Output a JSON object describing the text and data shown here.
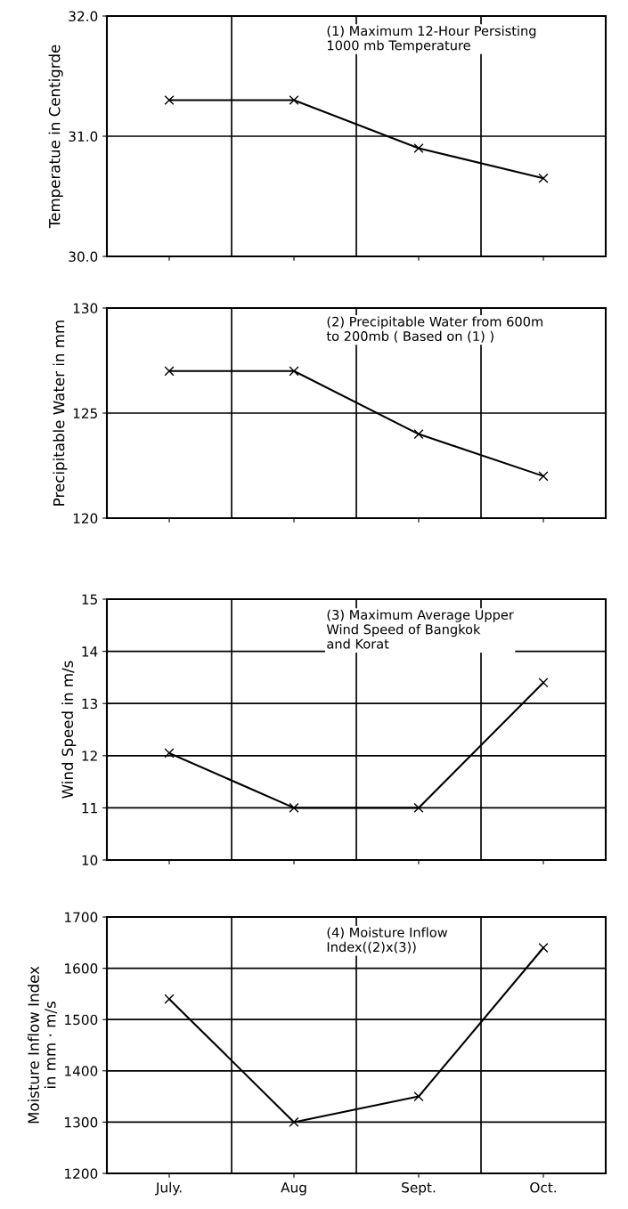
{
  "chart_data": [
    {
      "type": "line",
      "categories": [
        null,
        null,
        null,
        null
      ],
      "values": [
        31.3,
        31.3,
        30.9,
        30.65
      ],
      "color": "#000000",
      "marker": "cross",
      "ylabel": "Temperatue in Centigrde",
      "ylim": [
        30.0,
        32.0
      ],
      "yticks": [
        {
          "value": 30.0,
          "label": "30.0"
        },
        {
          "value": 31.0,
          "label": "31.0"
        },
        {
          "value": 32.0,
          "label": "32.0"
        }
      ],
      "grid": true,
      "tick_labels": "y",
      "annotations": [
        "(1) Maximum 12-Hour Persisting\n1000 mb Temperature"
      ]
    },
    {
      "type": "line",
      "categories": [
        null,
        null,
        null,
        null
      ],
      "values": [
        127,
        127,
        124,
        122
      ],
      "color": "#000000",
      "marker": "cross",
      "ylabel": "Precipitable Water in mm",
      "ylim": [
        120,
        130
      ],
      "yticks": [
        120,
        125,
        130
      ],
      "grid": true,
      "tick_labels": "y",
      "annotations": [
        "(2) Precipitable Water from 600m\nto 200mb ( Based on (1) )"
      ]
    },
    {
      "type": "line",
      "categories": [
        null,
        null,
        null,
        null
      ],
      "values": [
        12.05,
        11.0,
        11.0,
        13.4
      ],
      "color": "#000000",
      "marker": "cross",
      "ylabel": "Wind Speed in m/s",
      "ylim": [
        10,
        15
      ],
      "yticks": [
        10,
        11,
        12,
        13,
        14,
        15
      ],
      "grid": true,
      "tick_labels": "y",
      "annotations": [
        "(3) Maximum Average Upper\nWind Speed of Bangkok\nand Korat"
      ]
    },
    {
      "type": "line",
      "categories": [
        "July.",
        "Aug",
        "Sept.",
        "Oct."
      ],
      "values": [
        1540,
        1300,
        1350,
        1640
      ],
      "color": "#000000",
      "marker": "cross",
      "ylabel": "Moisture Inflow Index\nin mm · m/s",
      "ylim": [
        1200,
        1700
      ],
      "yticks": [
        1200,
        1300,
        1400,
        1500,
        1600,
        1700
      ],
      "grid": true,
      "annotations": [
        "(4) Moisture Inflow\nIndex((2)x(3))"
      ]
    }
  ]
}
